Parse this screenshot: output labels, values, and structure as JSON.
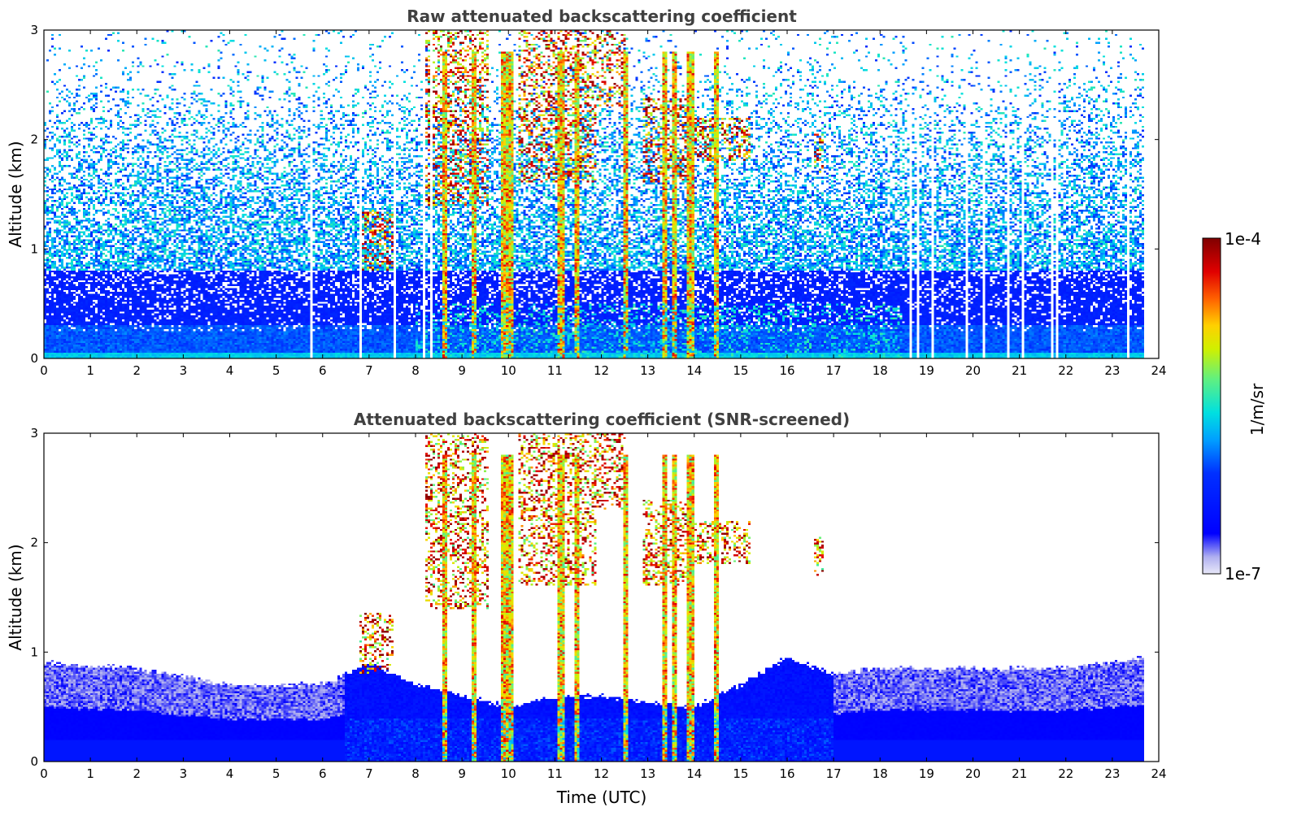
{
  "chart_data": [
    {
      "type": "heatmap",
      "title": "Raw attenuated backscattering coefficient",
      "xlabel": "",
      "ylabel": "Altitude (km)",
      "xlim": [
        0,
        24
      ],
      "ylim": [
        0,
        3
      ],
      "xticks": [
        "0",
        "1",
        "2",
        "3",
        "4",
        "5",
        "6",
        "7",
        "8",
        "9",
        "10",
        "11",
        "12",
        "13",
        "14",
        "15",
        "16",
        "17",
        "18",
        "19",
        "20",
        "21",
        "22",
        "23",
        "24"
      ],
      "yticks": [
        "0",
        "1",
        "2",
        "3"
      ],
      "data_end_hour": 23.7,
      "gap_hours": [
        5.75,
        6.8,
        7.55,
        8.2,
        8.35,
        18.65,
        18.8,
        19.15,
        19.85,
        20.25,
        20.75,
        21.1,
        21.7,
        21.8,
        23.35
      ],
      "cloud_features": [
        {
          "t_start": 6.8,
          "t_end": 7.55,
          "z_base": 0.8,
          "z_top": 1.35,
          "intensity": "high"
        },
        {
          "t_start": 8.2,
          "t_end": 9.6,
          "z_base": 1.4,
          "z_top": 3.0,
          "intensity": "high"
        },
        {
          "t_start": 10.2,
          "t_end": 11.9,
          "z_base": 1.6,
          "z_top": 3.0,
          "intensity": "high"
        },
        {
          "t_start": 11.9,
          "t_end": 12.5,
          "z_base": 2.3,
          "z_top": 3.0,
          "intensity": "high"
        },
        {
          "t_start": 12.9,
          "t_end": 14.0,
          "z_base": 1.6,
          "z_top": 2.4,
          "intensity": "high"
        },
        {
          "t_start": 14.0,
          "t_end": 15.2,
          "z_base": 1.8,
          "z_top": 2.2,
          "intensity": "high"
        },
        {
          "t_start": 16.6,
          "t_end": 16.8,
          "z_base": 1.7,
          "z_top": 2.05,
          "intensity": "high"
        }
      ],
      "precip_streaks_hour": [
        8.6,
        9.25,
        9.9,
        10.0,
        11.1,
        11.45,
        12.5,
        13.35,
        13.55,
        13.9,
        14.45
      ]
    },
    {
      "type": "heatmap",
      "title": "Attenuated backscattering coefficient (SNR-screened)",
      "xlabel": "Time (UTC)",
      "ylabel": "Altitude (km)",
      "xlim": [
        0,
        24
      ],
      "ylim": [
        0,
        3
      ],
      "xticks": [
        "0",
        "1",
        "2",
        "3",
        "4",
        "5",
        "6",
        "7",
        "8",
        "9",
        "10",
        "11",
        "12",
        "13",
        "14",
        "15",
        "16",
        "17",
        "18",
        "19",
        "20",
        "21",
        "22",
        "23",
        "24"
      ],
      "yticks": [
        "0",
        "1",
        "2",
        "3"
      ],
      "data_end_hour": 23.7,
      "boundary_layer_top_km": [
        {
          "t": 0,
          "z": 0.9
        },
        {
          "t": 2,
          "z": 0.85
        },
        {
          "t": 4,
          "z": 0.7
        },
        {
          "t": 6,
          "z": 0.7
        },
        {
          "t": 7,
          "z": 0.9
        },
        {
          "t": 8,
          "z": 0.7
        },
        {
          "t": 9,
          "z": 0.6
        },
        {
          "t": 10,
          "z": 0.5
        },
        {
          "t": 11,
          "z": 0.6
        },
        {
          "t": 12,
          "z": 0.6
        },
        {
          "t": 13,
          "z": 0.55
        },
        {
          "t": 14,
          "z": 0.5
        },
        {
          "t": 15,
          "z": 0.7
        },
        {
          "t": 16,
          "z": 0.95
        },
        {
          "t": 17,
          "z": 0.8
        },
        {
          "t": 18,
          "z": 0.85
        },
        {
          "t": 20,
          "z": 0.85
        },
        {
          "t": 22,
          "z": 0.85
        },
        {
          "t": 23.7,
          "z": 0.95
        }
      ]
    }
  ],
  "colorbar": {
    "label": "1/m/sr",
    "max_label": "1e-4",
    "min_label": "1e-7",
    "colormap": "jet",
    "min_color": "#e8e8f8",
    "max_color": "#800000"
  }
}
